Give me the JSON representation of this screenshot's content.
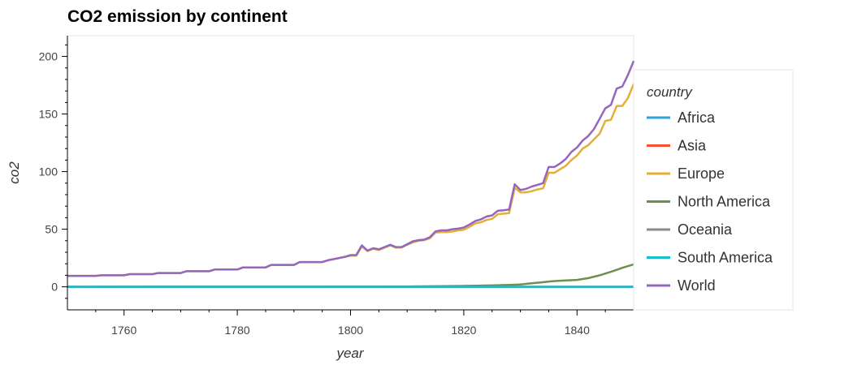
{
  "chart_data": {
    "type": "line",
    "title": "CO2 emission by continent",
    "xlabel": "year",
    "ylabel": "co2",
    "xlim": [
      1750,
      1850
    ],
    "ylim": [
      -20,
      218
    ],
    "x_ticks": [
      1760,
      1780,
      1800,
      1820,
      1840
    ],
    "y_ticks": [
      0,
      50,
      100,
      150,
      200
    ],
    "grid": false,
    "legend": {
      "title": "country",
      "placement": "right"
    },
    "series": [
      {
        "name": "Africa",
        "color": "#30a2da",
        "x": [
          1750,
          1850
        ],
        "y": [
          0,
          0
        ]
      },
      {
        "name": "Asia",
        "color": "#fc4f30",
        "x": [
          1750,
          1850
        ],
        "y": [
          0,
          0
        ]
      },
      {
        "name": "Europe",
        "color": "#e5ae38",
        "x": [
          1750,
          1755,
          1756,
          1760,
          1761,
          1765,
          1766,
          1770,
          1771,
          1775,
          1776,
          1780,
          1781,
          1785,
          1786,
          1790,
          1791,
          1795,
          1796,
          1799,
          1800,
          1801,
          1802,
          1803,
          1804,
          1805,
          1806,
          1807,
          1808,
          1809,
          1810,
          1811,
          1812,
          1813,
          1814,
          1815,
          1816,
          1817,
          1818,
          1819,
          1820,
          1821,
          1822,
          1823,
          1824,
          1825,
          1826,
          1827,
          1828,
          1829,
          1830,
          1831,
          1832,
          1833,
          1834,
          1835,
          1836,
          1837,
          1838,
          1839,
          1840,
          1841,
          1842,
          1843,
          1844,
          1845,
          1846,
          1847,
          1848,
          1849,
          1850
        ],
        "y": [
          9.5,
          9.5,
          10,
          10,
          11,
          11,
          12,
          12,
          13.5,
          13.5,
          15,
          15,
          16.8,
          16.8,
          19,
          19,
          21.5,
          21.5,
          23,
          26,
          27,
          27,
          35,
          31,
          33,
          32,
          34,
          36,
          34,
          34,
          36.5,
          38.5,
          40,
          40.5,
          42,
          47,
          47.5,
          47.5,
          48,
          49,
          49.5,
          52,
          55,
          56,
          58,
          59,
          63,
          63.5,
          64,
          86,
          82,
          82,
          83,
          84.5,
          85.5,
          99,
          99,
          102,
          105,
          110,
          114,
          120,
          123,
          128,
          133,
          144,
          145,
          157,
          157,
          164,
          176
        ]
      },
      {
        "name": "North America",
        "color": "#6d904f",
        "x": [
          1750,
          1810,
          1820,
          1825,
          1830,
          1832,
          1834,
          1836,
          1838,
          1840,
          1842,
          1844,
          1846,
          1848,
          1850
        ],
        "y": [
          0,
          0.3,
          0.8,
          1.2,
          2,
          3,
          4,
          5,
          5.5,
          6,
          7.5,
          10,
          13,
          16.5,
          19.5
        ]
      },
      {
        "name": "Oceania",
        "color": "#8b8b8b",
        "x": [
          1750,
          1850
        ],
        "y": [
          0,
          0
        ]
      },
      {
        "name": "South America",
        "color": "#17becf",
        "x": [
          1750,
          1850
        ],
        "y": [
          0,
          0
        ]
      },
      {
        "name": "World",
        "color": "#9467bd",
        "x": [
          1750,
          1755,
          1756,
          1760,
          1761,
          1765,
          1766,
          1770,
          1771,
          1775,
          1776,
          1780,
          1781,
          1785,
          1786,
          1790,
          1791,
          1795,
          1796,
          1799,
          1800,
          1801,
          1802,
          1803,
          1804,
          1805,
          1806,
          1807,
          1808,
          1809,
          1810,
          1811,
          1812,
          1813,
          1814,
          1815,
          1816,
          1817,
          1818,
          1819,
          1820,
          1821,
          1822,
          1823,
          1824,
          1825,
          1826,
          1827,
          1828,
          1829,
          1830,
          1831,
          1832,
          1833,
          1834,
          1835,
          1836,
          1837,
          1838,
          1839,
          1840,
          1841,
          1842,
          1843,
          1844,
          1845,
          1846,
          1847,
          1848,
          1849,
          1850
        ],
        "y": [
          9.5,
          9.5,
          10,
          10,
          11,
          11,
          12,
          12,
          13.5,
          13.5,
          15,
          15,
          16.8,
          16.8,
          19,
          19,
          21.5,
          21.5,
          23,
          26,
          27.5,
          27.5,
          36,
          31.5,
          33.5,
          32.5,
          34.5,
          36.5,
          34.5,
          34.5,
          37,
          39.5,
          40.5,
          41,
          43,
          48,
          49,
          49,
          50,
          50.5,
          51.5,
          54,
          57,
          58.5,
          61,
          62,
          66,
          66.5,
          67,
          89,
          84,
          85,
          87,
          88.5,
          90,
          104,
          104,
          107,
          111,
          117,
          121,
          127,
          131,
          137,
          146,
          155,
          158,
          172,
          174,
          184,
          196
        ]
      }
    ]
  }
}
